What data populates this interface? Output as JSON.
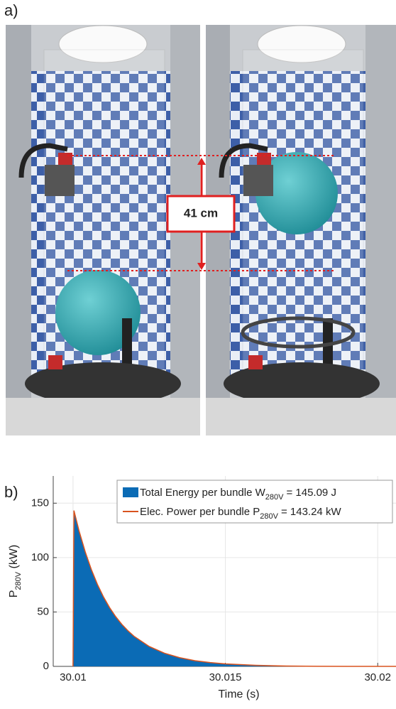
{
  "figure": {
    "panel_a_label": "a)",
    "panel_b_label": "b)",
    "distance_label": "41 cm"
  },
  "chart_data": {
    "type": "area",
    "x_label": "Time (s)",
    "y_label": "P",
    "y_label_subscript": "280V",
    "y_label_suffix": " (kW)",
    "x": [
      30.01,
      30.01003,
      30.0102,
      30.0104,
      30.0106,
      30.0108,
      30.011,
      30.0112,
      30.0114,
      30.0116,
      30.0118,
      30.012,
      30.0125,
      30.013,
      30.0135,
      30.014,
      30.0145,
      30.015,
      30.016,
      30.017,
      30.018,
      30.019,
      30.02,
      30.0206
    ],
    "series": [
      {
        "name": "Total Energy per bundle W",
        "name_subscript": "280V",
        "name_suffix": "= 145.09 J",
        "color": "#0b6bb5",
        "values": [
          0,
          143.24,
          124.3,
          105.3,
          89.1,
          75.4,
          63.8,
          54.0,
          45.7,
          38.7,
          32.8,
          27.7,
          18.3,
          12.1,
          8.0,
          5.2,
          3.5,
          2.3,
          1.0,
          0.3,
          0.1,
          0,
          0,
          0
        ]
      },
      {
        "name": "Elec. Power per bundle  P",
        "name_subscript": "280V",
        "name_suffix": "= 143.24 kW",
        "color": "#d9531e",
        "values": [
          0,
          143.24,
          124.3,
          105.3,
          89.1,
          75.4,
          63.8,
          54.0,
          45.7,
          38.7,
          32.8,
          27.7,
          18.3,
          12.1,
          8.0,
          5.2,
          3.5,
          2.3,
          1.0,
          0.3,
          0.1,
          0,
          0,
          0
        ]
      }
    ],
    "xlim": [
      30.00935,
      30.0206
    ],
    "xticks": [
      30.01,
      30.015,
      30.02
    ],
    "ylim": [
      0,
      175
    ],
    "yticks": [
      0,
      50,
      100,
      150
    ],
    "grid": true
  }
}
